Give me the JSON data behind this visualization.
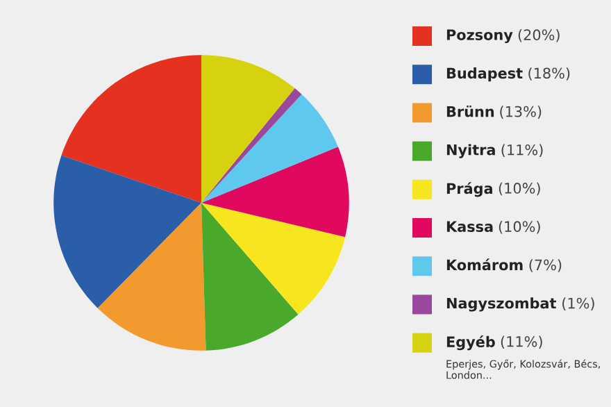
{
  "chart_data": {
    "type": "pie",
    "categories": [
      "Pozsony",
      "Budapest",
      "Brünn",
      "Nyitra",
      "Prága",
      "Kassa",
      "Komárom",
      "Nagyszombat",
      "Egyéb"
    ],
    "values": [
      20,
      18,
      13,
      11,
      10,
      10,
      7,
      1,
      11
    ],
    "value_labels": [
      "(20%)",
      "(18%)",
      "(13%)",
      "(11%)",
      "(10%)",
      "(10%)",
      "(7%)",
      "(1%)",
      "(11%)"
    ],
    "colors": [
      "#e5311f",
      "#2a5ea8",
      "#f39a2e",
      "#4aa82b",
      "#f7e51d",
      "#e0085f",
      "#5ec8ee",
      "#9b479b",
      "#d6d20f"
    ],
    "legend": "right",
    "annotations": [
      "Eperjes, Győr, Kolozsvár, Bécs, London..."
    ]
  }
}
